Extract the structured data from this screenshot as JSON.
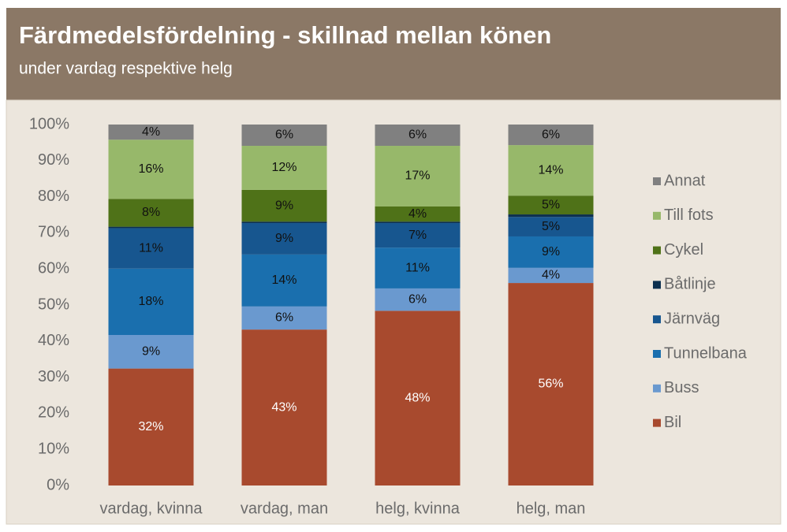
{
  "chart_data": {
    "type": "stacked_bar",
    "title": "Färdmedelsfördelning - skillnad mellan könen",
    "subtitle": "under vardag respektive helg",
    "categories": [
      "vardag, kvinna",
      "vardag, man",
      "helg, kvinna",
      "helg, man"
    ],
    "series": [
      {
        "name": "Bil",
        "color": "#a84a2e",
        "values": [
          32.4,
          43.2,
          48.4,
          56.1
        ],
        "value_labels": [
          "32%",
          "43%",
          "48%",
          "56%"
        ]
      },
      {
        "name": "Buss",
        "color": "#6a99cf",
        "values": [
          9.3,
          6.4,
          6.2,
          4.2
        ],
        "value_labels": [
          "9%",
          "6%",
          "6%",
          "4%"
        ]
      },
      {
        "name": "Tunnelbana",
        "color": "#1a6fae",
        "values": [
          18.4,
          14.4,
          11.3,
          8.7
        ],
        "value_labels": [
          "18%",
          "14%",
          "11%",
          "9%"
        ]
      },
      {
        "name": "Järnväg",
        "color": "#17568f",
        "values": [
          11.2,
          8.7,
          6.8,
          5.4
        ],
        "value_labels": [
          "11%",
          "9%",
          "7%",
          "5%"
        ]
      },
      {
        "name": "Båtlinje",
        "color": "#0b2f4f",
        "values": [
          0.4,
          0.4,
          0.4,
          0.7
        ]
      },
      {
        "name": "Cykel",
        "color": "#4f7218",
        "values": [
          7.7,
          8.8,
          4.2,
          5.2
        ],
        "value_labels": [
          "8%",
          "9%",
          "4%",
          "5%"
        ]
      },
      {
        "name": "Till fots",
        "color": "#97b86a",
        "values": [
          16.4,
          12.2,
          16.8,
          14.0
        ],
        "value_labels": [
          "16%",
          "12%",
          "17%",
          "14%"
        ]
      },
      {
        "name": "Annat",
        "color": "#808080",
        "values": [
          4.2,
          5.9,
          5.9,
          5.7
        ],
        "value_labels": [
          "4%",
          "6%",
          "6%",
          "6%"
        ]
      }
    ],
    "ylim": [
      0,
      100
    ],
    "yticks": [
      {
        "value": 0,
        "label": "0%"
      },
      {
        "value": 10,
        "label": "10%"
      },
      {
        "value": 20,
        "label": "20%"
      },
      {
        "value": 30,
        "label": "30%"
      },
      {
        "value": 40,
        "label": "40%"
      },
      {
        "value": 50,
        "label": "50%"
      },
      {
        "value": 60,
        "label": "60%"
      },
      {
        "value": 70,
        "label": "70%"
      },
      {
        "value": 80,
        "label": "80%"
      },
      {
        "value": 90,
        "label": "90%"
      },
      {
        "value": 100,
        "label": "100%"
      }
    ],
    "grid": false,
    "legend": "right"
  }
}
